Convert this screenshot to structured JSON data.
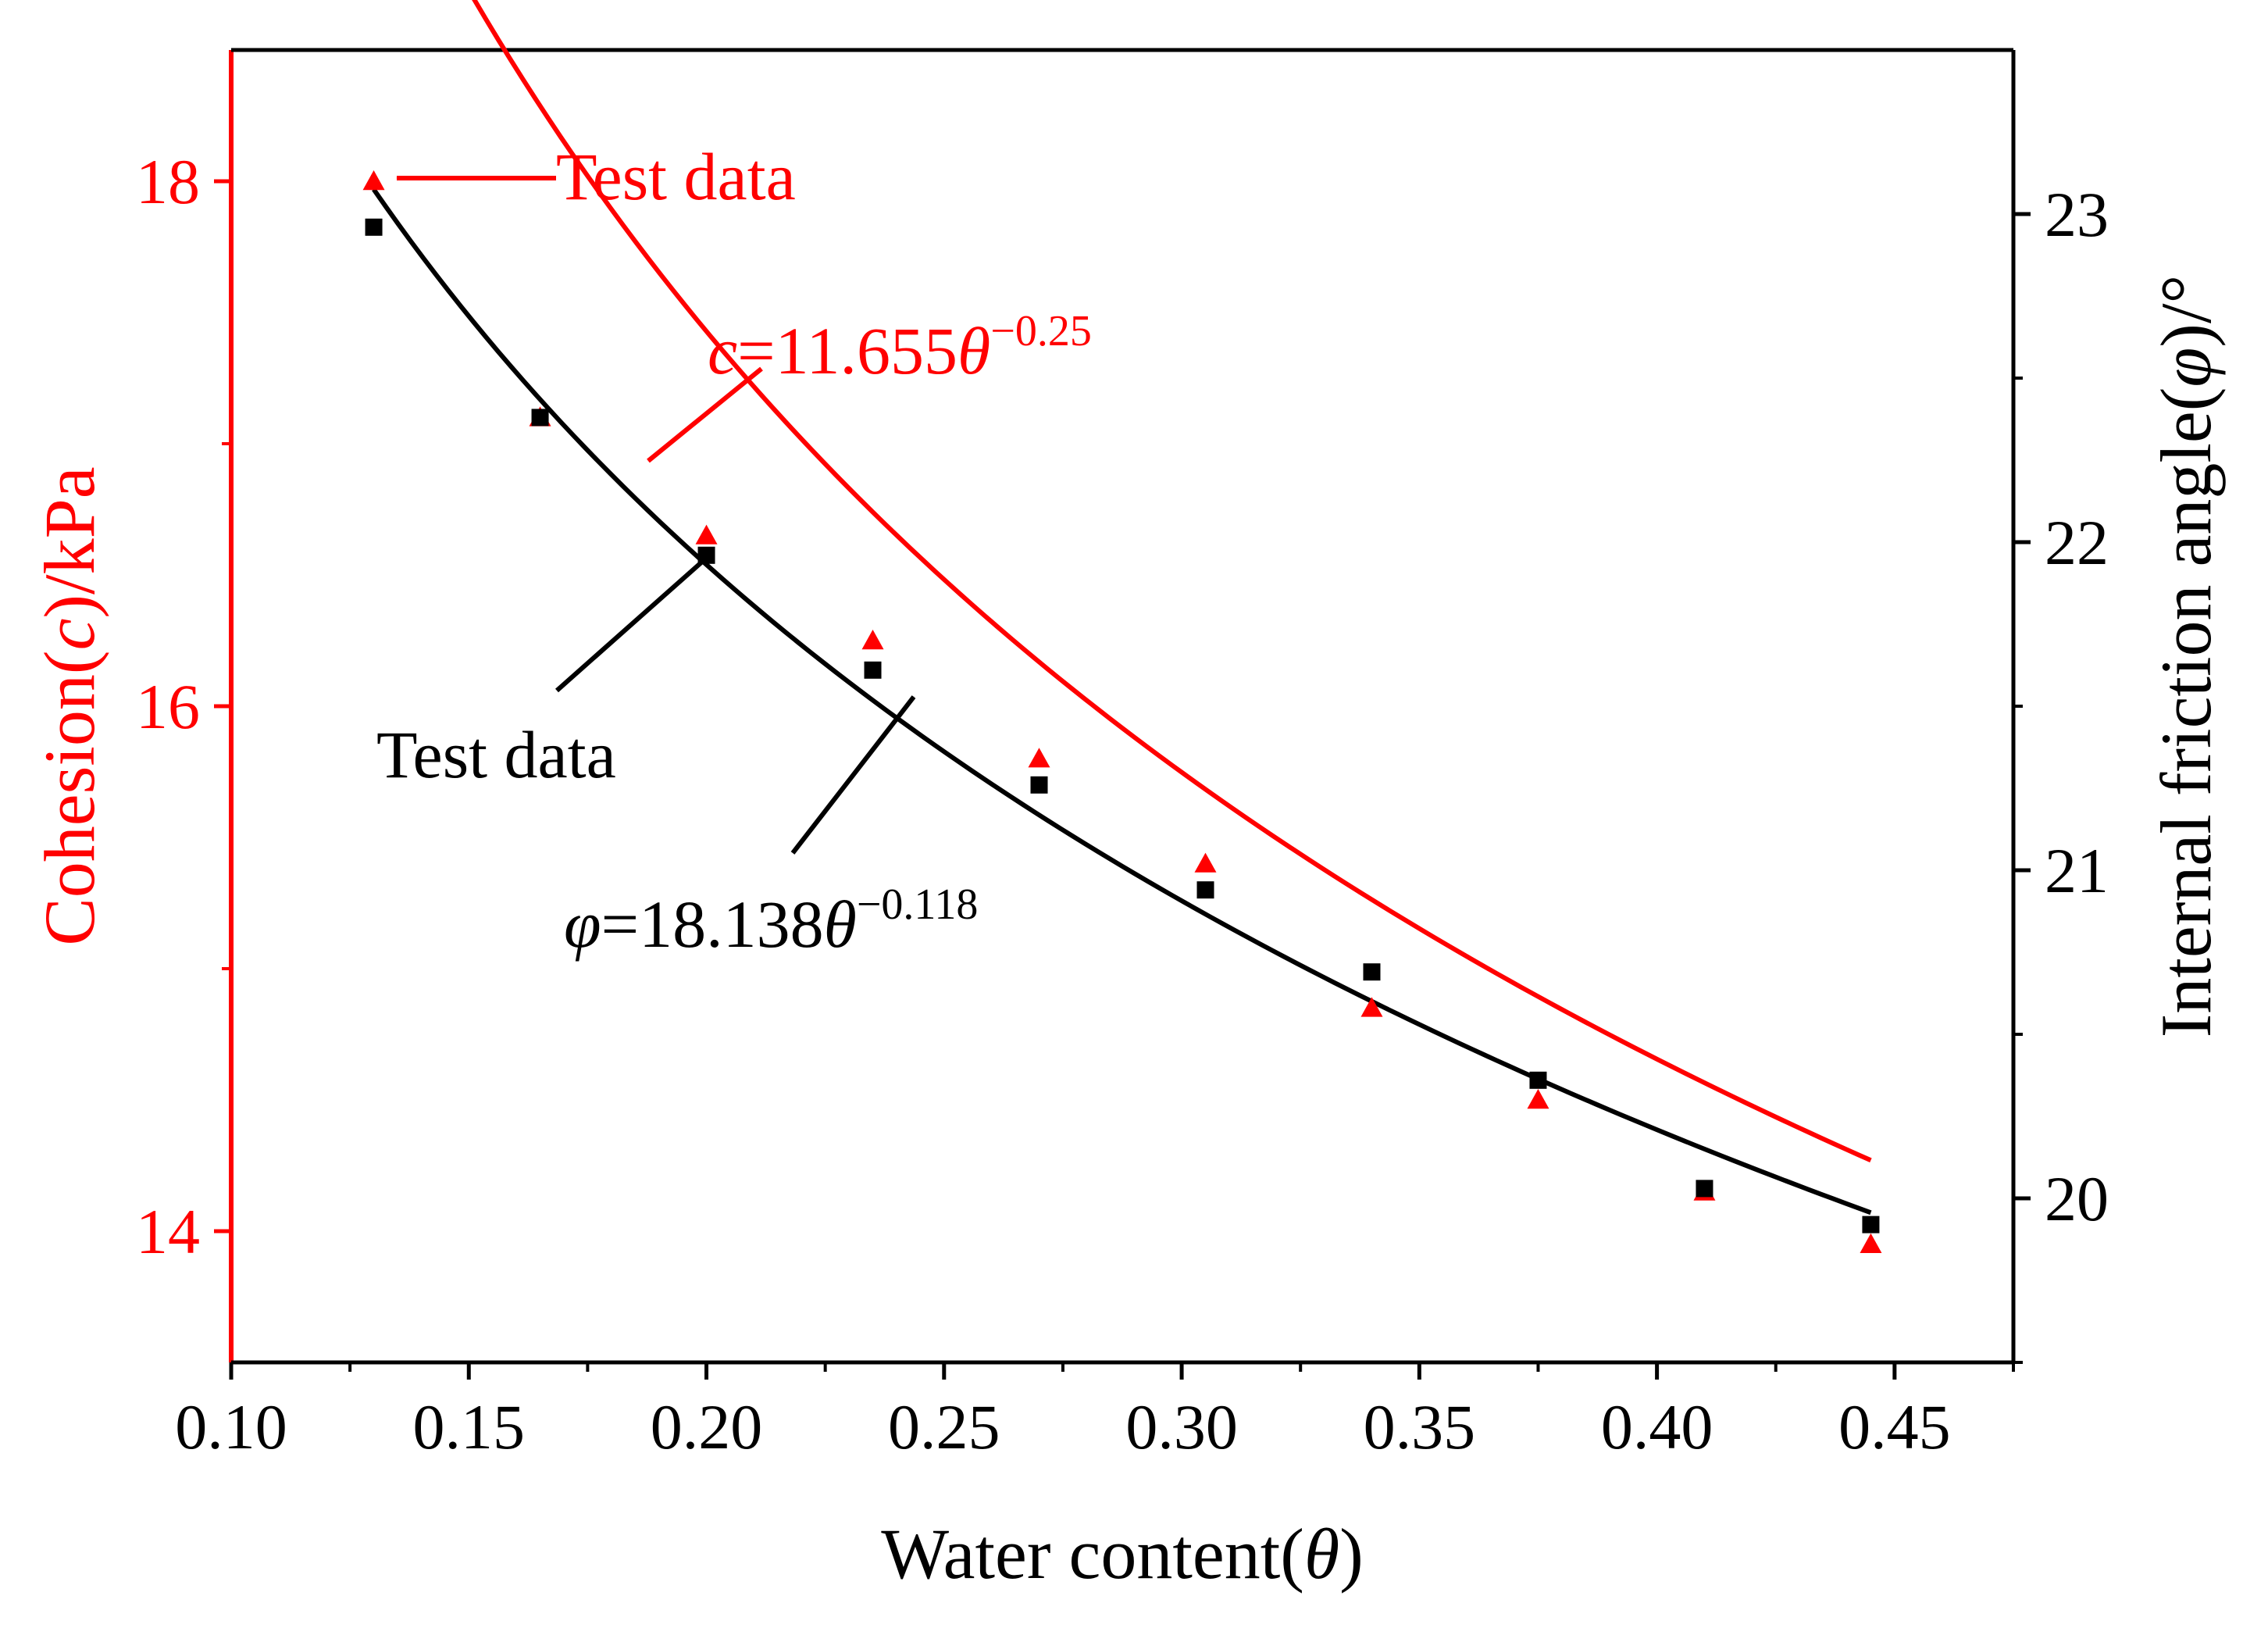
{
  "chart_data": {
    "type": "scatter",
    "title": "",
    "xlabel": {
      "prefix": "Water content(",
      "symbol": "θ",
      "suffix": ")"
    },
    "ylabel_left": {
      "prefix": "Cohesion(",
      "symbol": "c",
      "suffix": ")/kPa"
    },
    "ylabel_right": {
      "prefix": "Internal friction angle(",
      "symbol": "φ",
      "suffix": ")/°"
    },
    "xlim": [
      0.1,
      0.475
    ],
    "ylim_left": [
      13.5,
      18.5
    ],
    "ylim_right": [
      19.5,
      23.5
    ],
    "x_ticks": [
      "0.10",
      "0.15",
      "0.20",
      "0.25",
      "0.30",
      "0.35",
      "0.40",
      "0.45"
    ],
    "y_left_ticks": [
      "14",
      "16",
      "18"
    ],
    "y_right_ticks": [
      "20",
      "21",
      "22",
      "23"
    ],
    "colors": {
      "cohesion": "#ff0000",
      "friction": "#000000"
    },
    "series": [
      {
        "name": "Cohesion test data",
        "axis": "left",
        "marker": "triangle",
        "x": [
          0.13,
          0.165,
          0.2,
          0.235,
          0.27,
          0.305,
          0.34,
          0.375,
          0.41,
          0.445
        ],
        "values": [
          18.0,
          17.1,
          16.65,
          16.25,
          15.8,
          15.4,
          14.85,
          14.5,
          14.15,
          13.95
        ]
      },
      {
        "name": "Internal friction angle test data",
        "axis": "right",
        "marker": "square",
        "x": [
          0.13,
          0.165,
          0.2,
          0.235,
          0.27,
          0.305,
          0.34,
          0.375,
          0.41,
          0.445
        ],
        "values": [
          22.96,
          22.38,
          21.96,
          21.61,
          21.26,
          20.94,
          20.69,
          20.36,
          20.03,
          19.92
        ]
      }
    ],
    "fits": [
      {
        "name": "Cohesion fit",
        "axis": "left",
        "coef": 11.655,
        "exp": -0.25,
        "x_range": [
          0.13,
          0.445
        ]
      },
      {
        "name": "Friction fit",
        "axis": "right",
        "coef": 18.138,
        "exp": -0.118,
        "x_range": [
          0.13,
          0.445
        ]
      }
    ],
    "annotations": {
      "test_data_red": "Test data",
      "test_data_black": "Test data",
      "eq_red": {
        "var": "c",
        "body": "=11.655",
        "sym": "θ",
        "sup": "−0.25"
      },
      "eq_black": {
        "var": "φ",
        "body": "=18.138",
        "sym": "θ",
        "sup": "−0.118"
      }
    }
  }
}
